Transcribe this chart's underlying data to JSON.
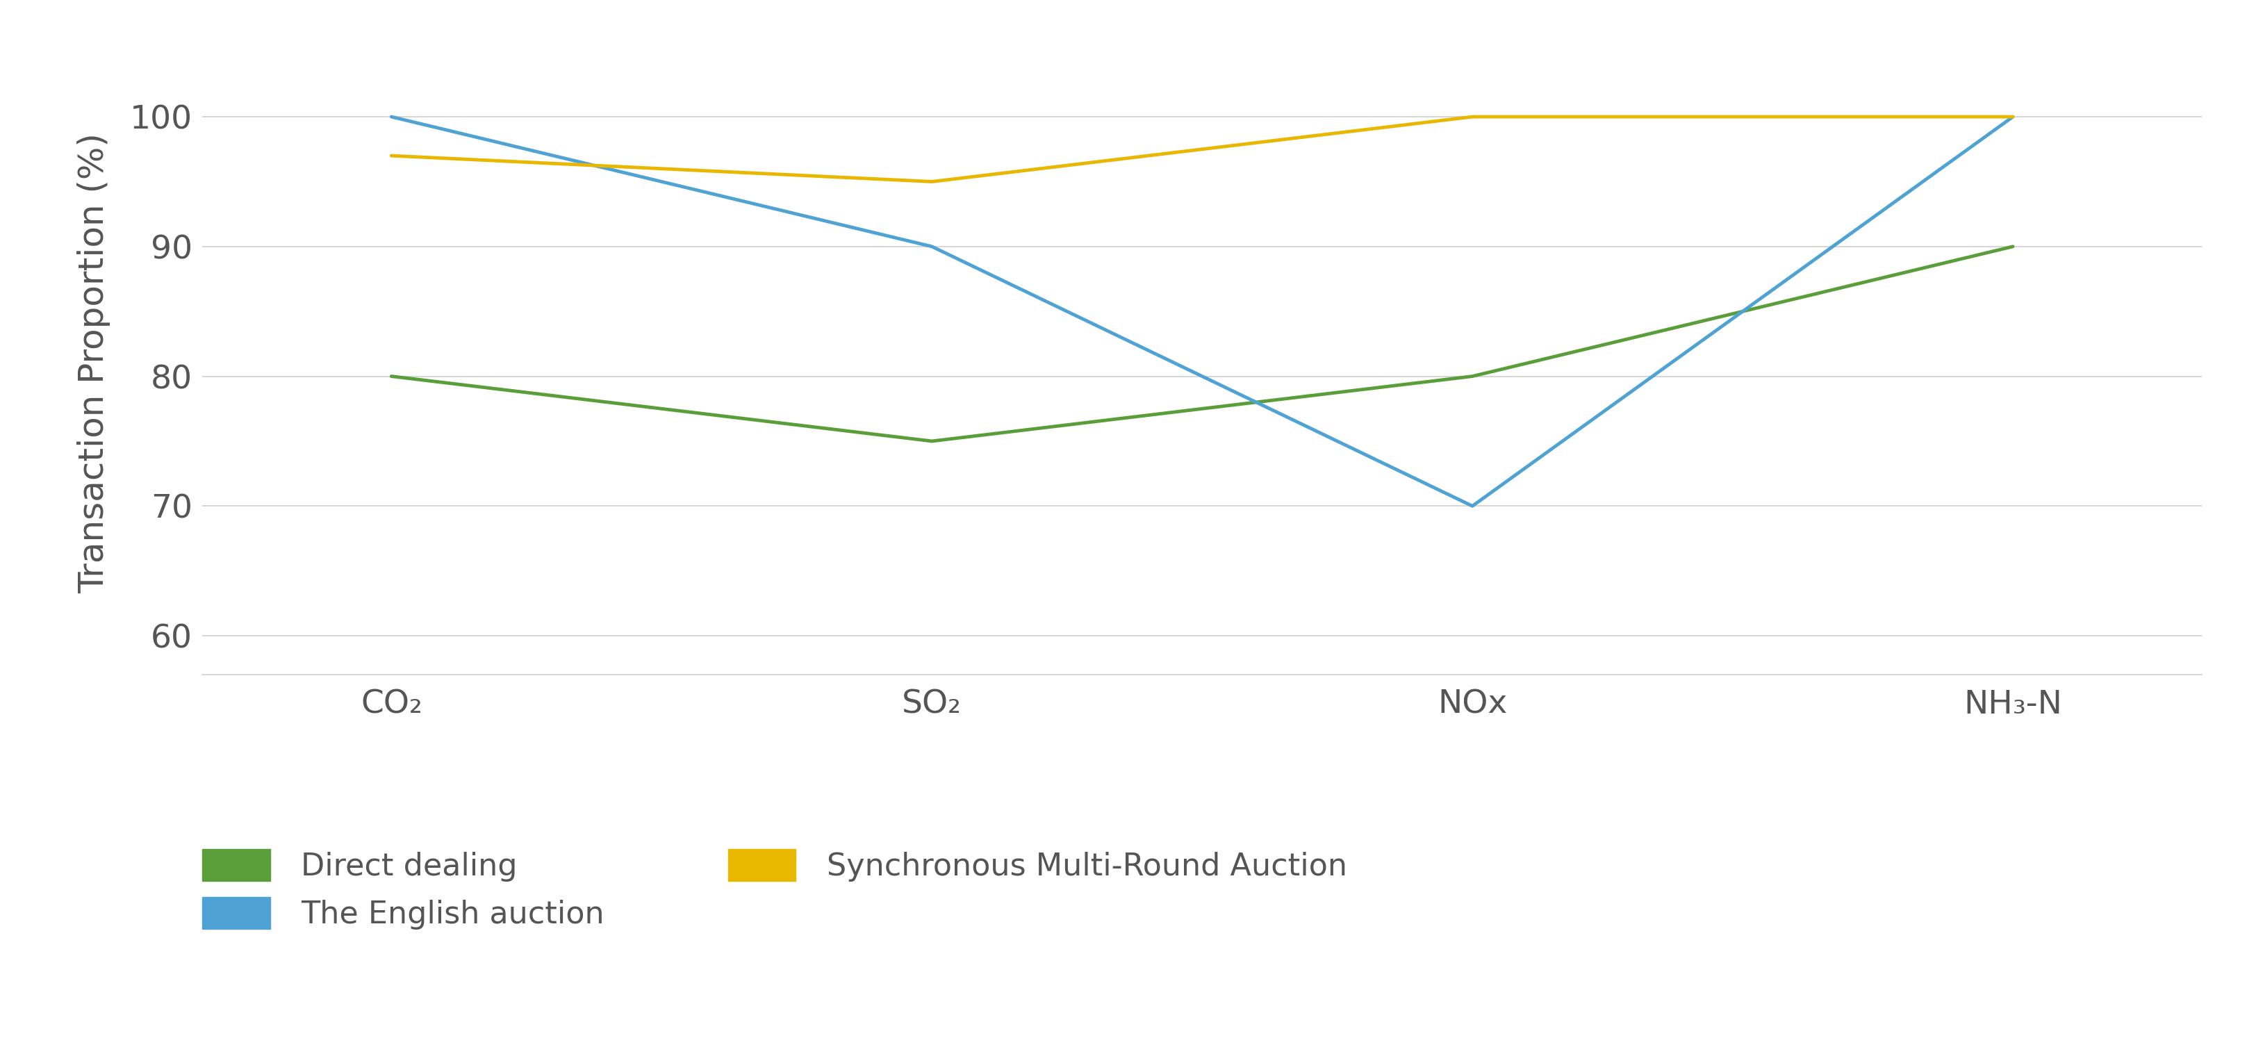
{
  "categories": [
    "CO₂",
    "SO₂",
    "NOx",
    "NH₃-N"
  ],
  "series": [
    {
      "name": "Direct dealing",
      "values": [
        80,
        75,
        80,
        90
      ],
      "color": "#5a9e3a",
      "linewidth": 3.5
    },
    {
      "name": "The English auction",
      "values": [
        100,
        90,
        70,
        100
      ],
      "color": "#4fa3d4",
      "linewidth": 3.5
    },
    {
      "name": "Synchronous Multi-Round Auction",
      "values": [
        97,
        95,
        100,
        100
      ],
      "color": "#e8b800",
      "linewidth": 3.5
    }
  ],
  "ylabel": "Transaction Proportion (%)",
  "ylim": [
    57,
    105
  ],
  "yticks": [
    60,
    70,
    80,
    90,
    100
  ],
  "grid_color": "#d0d0d0",
  "background_color": "#ffffff",
  "plot_bg_color": "#ffffff",
  "legend_fontsize": 32,
  "axis_label_fontsize": 36,
  "tick_fontsize": 34,
  "category_fontsize": 34,
  "tick_color": "#555555",
  "label_color": "#555555"
}
